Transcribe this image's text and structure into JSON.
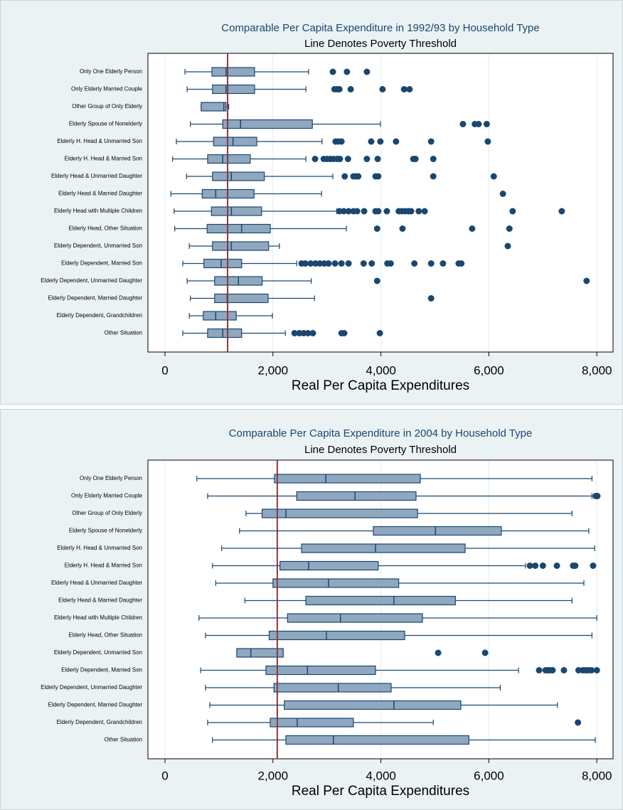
{
  "chart_data": [
    {
      "type": "box",
      "title": "Comparable Per Capita Expenditure in 1992/93 by Household Type",
      "subtitle": "Line Denotes Poverty Threshold",
      "xlabel": "Real Per Capita Expenditures",
      "categories": [
        "Only One Elderly Person",
        "Only Elderly Married Couple",
        "Other Group of Only Elderly",
        "Elderly Spouse of Nonelderly",
        "Elderly H. Head & Unmarried Son",
        "Elderly H. Head & Married Son",
        "Elderly Head & Unmarried Daughter",
        "Elderly Head & Married Daughter",
        "Elderly Head with Multiple Children",
        "Elderly Head, Other Situation",
        "Elderly Dependent, Unmarried Son",
        "Elderly Dependent, Married Son",
        "Elderly Dependent, Unmarried Daughter",
        "Elderly Dependent, Married Daughter",
        "Elderly Dependent, Grandchildren",
        "Other Situation"
      ],
      "whisker_low": [
        370,
        410,
        670,
        470,
        210,
        140,
        400,
        110,
        170,
        180,
        450,
        330,
        410,
        470,
        450,
        330
      ],
      "q1": [
        870,
        880,
        670,
        1070,
        900,
        790,
        880,
        690,
        860,
        780,
        880,
        720,
        920,
        920,
        710,
        790
      ],
      "median": [
        1130,
        1130,
        1090,
        1400,
        1260,
        1070,
        1230,
        940,
        1230,
        1420,
        1230,
        1040,
        1360,
        1150,
        940,
        1070
      ],
      "q3": [
        1660,
        1660,
        1130,
        2730,
        1700,
        1580,
        1840,
        1650,
        1790,
        1950,
        1920,
        1420,
        1800,
        1910,
        1320,
        1420
      ],
      "whisker_high": [
        2660,
        2610,
        1180,
        3990,
        2910,
        2610,
        3110,
        2900,
        3180,
        3360,
        2120,
        2440,
        2710,
        2770,
        1990,
        2230
      ],
      "outliers": [
        [
          3110,
          3370,
          3740
        ],
        [
          3140,
          3190,
          3230,
          3440,
          4030,
          4430,
          4530
        ],
        [],
        [
          5520,
          5740,
          5810,
          5960
        ],
        [
          3160,
          3210,
          3270,
          3820,
          3990,
          4280,
          4930,
          5980
        ],
        [
          2780,
          2940,
          3000,
          3060,
          3120,
          3190,
          3240,
          3390,
          3740,
          3940,
          4600,
          4640,
          4970
        ],
        [
          3330,
          3490,
          3540,
          3580,
          3900,
          3950,
          4970,
          6090
        ],
        [
          6260
        ],
        [
          3230,
          3310,
          3400,
          3490,
          3560,
          3690,
          3900,
          3950,
          4110,
          4330,
          4390,
          4450,
          4510,
          4560,
          4700,
          4810,
          6440,
          7350
        ],
        [
          3930,
          4400,
          5690,
          6380
        ],
        [
          6350
        ],
        [
          2530,
          2600,
          2700,
          2790,
          2870,
          2950,
          3030,
          3150,
          3270,
          3400,
          3680,
          3830,
          4120,
          4180,
          4620,
          4930,
          5150,
          5440,
          5490
        ],
        [
          3930,
          7810
        ],
        [
          4930
        ],
        [],
        [
          2400,
          2490,
          2570,
          2650,
          2740,
          3270,
          3320,
          3980
        ]
      ],
      "threshold": 1160,
      "xlim": [
        -316,
        8300
      ],
      "xticks": [
        0,
        {
          "value": 2000,
          "label": "2,000"
        },
        {
          "value": 4000,
          "label": "4,000"
        },
        {
          "value": 6000,
          "label": "6,000"
        },
        {
          "value": 8000,
          "label": "8,000"
        }
      ],
      "grid": true,
      "box_color": "#8fa8c0",
      "line_color": "#1a476f",
      "threshold_color": "#90353b"
    },
    {
      "type": "box",
      "title": "Comparable Per Capita Expenditure in 2004 by Household Type",
      "subtitle": "Line Denotes Poverty Threshold",
      "xlabel": "Real Per Capita Expenditures",
      "categories": [
        "Only One Elderly Person",
        "Only Elderly Married Couple",
        "Other Group of Only Elderly",
        "Elderly Spouse of Nonelderly",
        "Elderly H. Head & Unmarried Son",
        "Elderly H. Head & Married Son",
        "Elderly Head & Unmarried Daughter",
        "Elderly Head & Married Daughter",
        "Elderly Head with Multiple Children",
        "Elderly Head, Other Situation",
        "Elderly Dependent, Unmarried Son",
        "Elderly Dependent, Married Son",
        "Elderly Dependent, Unmarried Daughter",
        "Elderly Dependent, Married Daughter",
        "Elderly Dependent, Grandchildren",
        "Other Situation"
      ],
      "whisker_low": [
        590,
        790,
        1500,
        1380,
        1050,
        880,
        940,
        1480,
        630,
        750,
        1330,
        660,
        750,
        830,
        790,
        880
      ],
      "q1": [
        2030,
        2440,
        1800,
        3860,
        2530,
        2130,
        2000,
        2610,
        2270,
        1930,
        1330,
        1870,
        2020,
        2210,
        1950,
        2240
      ],
      "median": [
        2980,
        3520,
        2240,
        5010,
        3900,
        2660,
        3030,
        4240,
        3250,
        2990,
        1590,
        2640,
        3210,
        4240,
        2450,
        3120
      ],
      "q3": [
        4730,
        4650,
        4680,
        6230,
        5560,
        3950,
        4330,
        5380,
        4770,
        4440,
        2190,
        3900,
        4190,
        5480,
        3490,
        5630
      ],
      "whisker_high": [
        7910,
        7910,
        7540,
        7850,
        7960,
        6680,
        7760,
        7540,
        8000,
        7910,
        2190,
        6550,
        6210,
        7270,
        4970,
        7970
      ],
      "outliers": [
        [],
        [
          7980,
          8010
        ],
        [],
        [],
        [],
        [
          6760,
          6860,
          7000,
          7260,
          7560,
          7600,
          7930
        ],
        [],
        [],
        [],
        [],
        [
          5060,
          5930
        ],
        [
          6930,
          7050,
          7090,
          7130,
          7180,
          7390,
          7660,
          7740,
          7790,
          7840,
          7900,
          8000
        ],
        [],
        [],
        [
          7650
        ],
        []
      ],
      "threshold": 2080,
      "xlim": [
        -316,
        8300
      ],
      "xticks": [
        0,
        {
          "value": 2000,
          "label": "2,000"
        },
        {
          "value": 4000,
          "label": "4,000"
        },
        {
          "value": 6000,
          "label": "6,000"
        },
        {
          "value": 8000,
          "label": "8,000"
        }
      ],
      "grid": true,
      "box_color": "#8fa8c0",
      "line_color": "#1a476f",
      "threshold_color": "#90353b"
    }
  ]
}
